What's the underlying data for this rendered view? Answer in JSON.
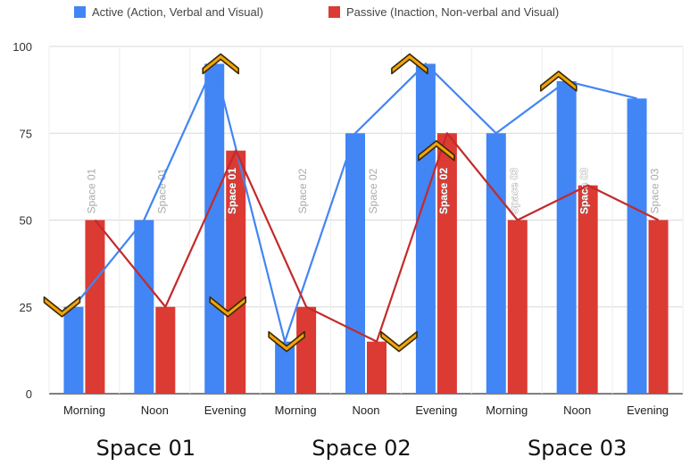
{
  "chart_data": {
    "type": "bar",
    "categories": [
      "Morning",
      "Noon",
      "Evening",
      "Morning",
      "Noon",
      "Evening",
      "Morning",
      "Noon",
      "Evening"
    ],
    "groups": [
      "Space 01",
      "Space 02",
      "Space 03"
    ],
    "series": [
      {
        "name": "Active (Action, Verbal and Visual)",
        "color": "#4285f4",
        "values": [
          25,
          50,
          95,
          15,
          75,
          95,
          75,
          90,
          85
        ]
      },
      {
        "name": "Passive (Inaction, Non-verbal and Visual)",
        "color": "#db3b33",
        "values": [
          50,
          25,
          70,
          25,
          15,
          75,
          50,
          60,
          50
        ]
      }
    ],
    "bar_labels": [
      "Space 01",
      "Space 01",
      "Space 01",
      "Space 02",
      "Space 02",
      "Space 02",
      "Space 03",
      "Space 03",
      "Space 03"
    ],
    "yticks": [
      0,
      25,
      50,
      75,
      100
    ],
    "ylim": [
      0,
      100
    ],
    "grid": true,
    "legend_position": "top",
    "trend_lines": true,
    "markers": [
      {
        "value": 25,
        "direction": "down"
      },
      {
        "value": 25,
        "direction": "down"
      },
      {
        "value": 95,
        "direction": "up"
      },
      {
        "value": 15,
        "direction": "down"
      },
      {
        "value": 15,
        "direction": "down"
      },
      {
        "value": 95,
        "direction": "up"
      },
      {
        "value": 70,
        "direction": "up"
      },
      {
        "value": 90,
        "direction": "up"
      }
    ],
    "marker_color": "#f2a40c"
  }
}
